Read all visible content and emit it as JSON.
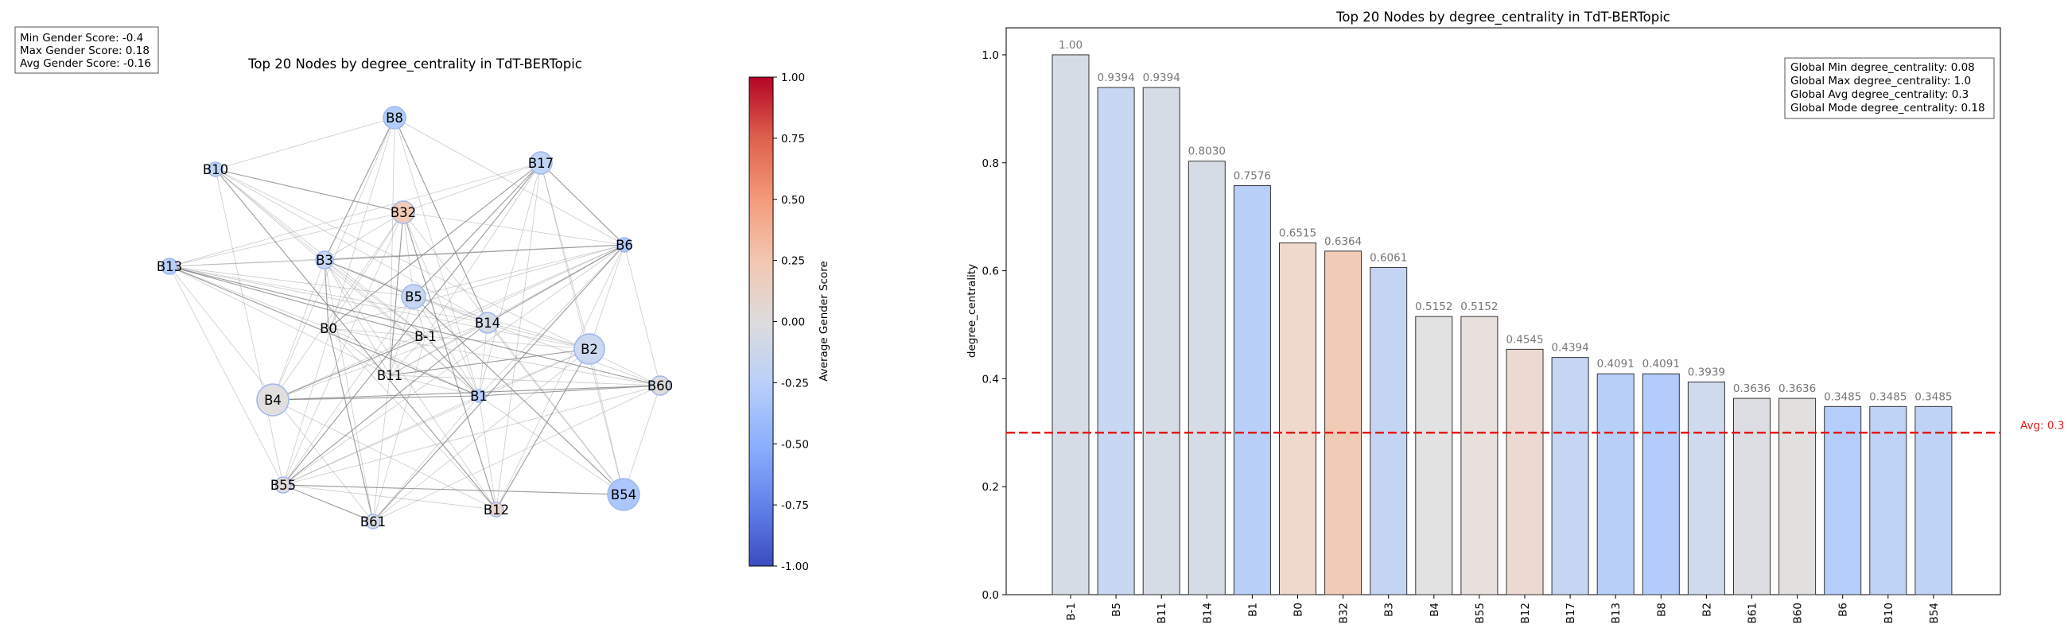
{
  "stats_box": {
    "lines": [
      "Min Gender Score: -0.4",
      "Max Gender Score: 0.18",
      "Avg Gender Score: -0.16"
    ]
  },
  "network": {
    "title": "Top 20 Nodes by degree_centrality in TdT-BERTopic"
  },
  "colorbar": {
    "label": "Average Gender Score",
    "ticks": [
      "1.00",
      "0.75",
      "0.50",
      "0.25",
      "0.00",
      "-0.25",
      "-0.50",
      "-0.75",
      "-1.00"
    ]
  },
  "chart_data": [
    {
      "type": "network",
      "title": "Top 20 Nodes by degree_centrality in TdT-BERTopic",
      "colorbar_label": "Average Gender Score",
      "colorbar_range": [
        -1.0,
        1.0
      ],
      "nodes": [
        {
          "label": "B-1",
          "color": "#dadee6"
        },
        {
          "label": "B5",
          "color": "#c6d6f1"
        },
        {
          "label": "B11",
          "color": "#d7dce6"
        },
        {
          "label": "B14",
          "color": "#d6dce6"
        },
        {
          "label": "B1",
          "color": "#b8cff8"
        },
        {
          "label": "B0",
          "color": "#eed8cb"
        },
        {
          "label": "B32",
          "color": "#f2cbb7"
        },
        {
          "label": "B3",
          "color": "#c4d5f3"
        },
        {
          "label": "B4",
          "color": "#e1dfdd"
        },
        {
          "label": "B55",
          "color": "#e3dcda"
        },
        {
          "label": "B12",
          "color": "#ead5cd"
        },
        {
          "label": "B17",
          "color": "#c2d4f6"
        },
        {
          "label": "B13",
          "color": "#b8cff8"
        },
        {
          "label": "B8",
          "color": "#b2ccfb"
        },
        {
          "label": "B2",
          "color": "#cbd8ee"
        },
        {
          "label": "B61",
          "color": "#dcdde2"
        },
        {
          "label": "B60",
          "color": "#e0dedd"
        },
        {
          "label": "B6",
          "color": "#adc8fc"
        },
        {
          "label": "B10",
          "color": "#c0d4f5"
        },
        {
          "label": "B54",
          "color": "#abc7fd"
        }
      ]
    },
    {
      "type": "bar",
      "title": "Top 20 Nodes by degree_centrality in TdT-BERTopic",
      "xlabel": "",
      "ylabel": "degree_centrality",
      "ylim": [
        0,
        1.05
      ],
      "yticks": [
        "0.0",
        "0.2",
        "0.4",
        "0.6",
        "0.8",
        "1.0"
      ],
      "categories": [
        "B-1",
        "B5",
        "B11",
        "B14",
        "B1",
        "B0",
        "B32",
        "B3",
        "B4",
        "B55",
        "B12",
        "B17",
        "B13",
        "B8",
        "B2",
        "B61",
        "B60",
        "B6",
        "B10",
        "B54"
      ],
      "values": [
        1.0,
        0.9394,
        0.9394,
        0.803,
        0.7576,
        0.6515,
        0.6364,
        0.6061,
        0.5152,
        0.5152,
        0.4545,
        0.4394,
        0.4091,
        0.4091,
        0.3939,
        0.3636,
        0.3636,
        0.3485,
        0.3485,
        0.3485
      ],
      "value_labels": [
        "1.00",
        "0.9394",
        "0.9394",
        "0.8030",
        "0.7576",
        "0.6515",
        "0.6364",
        "0.6061",
        "0.5152",
        "0.5152",
        "0.4545",
        "0.4394",
        "0.4091",
        "0.4091",
        "0.3939",
        "0.3636",
        "0.3636",
        "0.3485",
        "0.3485",
        "0.3485"
      ],
      "bar_colors": [
        "#d6dce6",
        "#c8d7f2",
        "#d6dce6",
        "#d6dce6",
        "#b8cff8",
        "#efd9cd",
        "#f2cbb7",
        "#c4d5f3",
        "#e3e2e2",
        "#e8e0dd",
        "#ecdad2",
        "#c5d6f5",
        "#b8cff8",
        "#b2ccfb",
        "#d0daee",
        "#dcdde2",
        "#e2e0de",
        "#b4cdfa",
        "#bfd3f6",
        "#bfd3f6"
      ],
      "avg_line": {
        "value": 0.3,
        "label": "Avg: 0.3",
        "color": "#e31a1c"
      },
      "info_box": [
        "Global Min degree_centrality: 0.08",
        "Global Max degree_centrality: 1.0",
        "Global Avg degree_centrality: 0.3",
        "Global Mode degree_centrality: 0.18"
      ]
    }
  ]
}
